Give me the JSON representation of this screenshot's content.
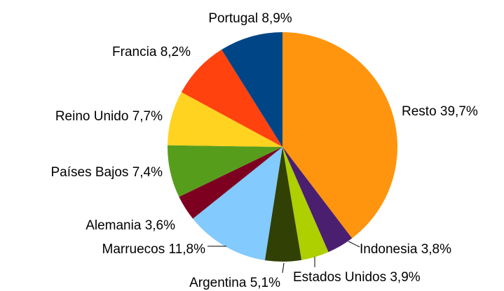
{
  "chart_data": {
    "type": "pie",
    "categories": [
      "Resto",
      "Indonesia",
      "Estados Unidos",
      "Argentina",
      "Marruecos",
      "Alemania",
      "Países Bajos",
      "Reino Unido",
      "Francia",
      "Portugal"
    ],
    "values": [
      39.7,
      3.8,
      3.9,
      5.1,
      11.8,
      3.6,
      7.4,
      7.7,
      8.2,
      8.9
    ],
    "value_labels": [
      "39,7%",
      "3,8%",
      "3,9%",
      "5,1%",
      "11,8%",
      "3,6%",
      "7,4%",
      "7,7%",
      "8,2%",
      "8,9%"
    ],
    "colors": [
      "#ff950e",
      "#4b1f6f",
      "#aecf00",
      "#314004",
      "#83caff",
      "#7e0021",
      "#579d1c",
      "#ffd320",
      "#ff420e",
      "#004586"
    ]
  }
}
